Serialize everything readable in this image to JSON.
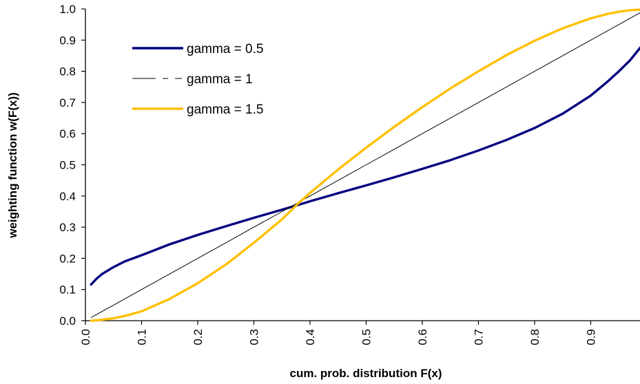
{
  "chart_data": {
    "type": "line",
    "xlabel": "cum. prob. distribution F(x)",
    "ylabel": "weighting function w(F(x))",
    "xlim": [
      0.0,
      1.0
    ],
    "ylim": [
      0.0,
      1.0
    ],
    "x_ticks": [
      "0.0",
      "0.1",
      "0.2",
      "0.3",
      "0.4",
      "0.5",
      "0.6",
      "0.7",
      "0.8",
      "0.9"
    ],
    "y_ticks": [
      "0.0",
      "0.1",
      "0.2",
      "0.3",
      "0.4",
      "0.5",
      "0.6",
      "0.7",
      "0.8",
      "0.9",
      "1.0"
    ],
    "grid": false,
    "legend_position": "top-left",
    "x": [
      0.01,
      0.02,
      0.03,
      0.05,
      0.07,
      0.1,
      0.15,
      0.2,
      0.25,
      0.3,
      0.35,
      0.38,
      0.4,
      0.45,
      0.5,
      0.55,
      0.6,
      0.65,
      0.7,
      0.75,
      0.8,
      0.85,
      0.9,
      0.93,
      0.95,
      0.97,
      0.99
    ],
    "series": [
      {
        "name": "gamma = 0.5",
        "color": "#000080",
        "style": "solid-thick",
        "values": [
          0.116,
          0.135,
          0.15,
          0.172,
          0.19,
          0.21,
          0.245,
          0.275,
          0.303,
          0.33,
          0.356,
          0.372,
          0.383,
          0.409,
          0.434,
          0.46,
          0.487,
          0.515,
          0.546,
          0.58,
          0.618,
          0.664,
          0.722,
          0.767,
          0.8,
          0.835,
          0.88
        ]
      },
      {
        "name": "gamma = 1",
        "color": "#000000",
        "style": "thin",
        "values": [
          0.01,
          0.02,
          0.03,
          0.05,
          0.07,
          0.1,
          0.15,
          0.2,
          0.25,
          0.3,
          0.35,
          0.38,
          0.4,
          0.45,
          0.5,
          0.55,
          0.6,
          0.65,
          0.7,
          0.75,
          0.8,
          0.85,
          0.9,
          0.93,
          0.95,
          0.97,
          0.99
        ]
      },
      {
        "name": "gamma = 1.5",
        "color": "#FFC000",
        "style": "solid-thick",
        "values": [
          0.0,
          0.001,
          0.003,
          0.008,
          0.015,
          0.03,
          0.07,
          0.12,
          0.18,
          0.25,
          0.325,
          0.378,
          0.41,
          0.485,
          0.555,
          0.622,
          0.685,
          0.745,
          0.8,
          0.852,
          0.898,
          0.938,
          0.97,
          0.984,
          0.991,
          0.996,
          0.998
        ]
      }
    ]
  }
}
